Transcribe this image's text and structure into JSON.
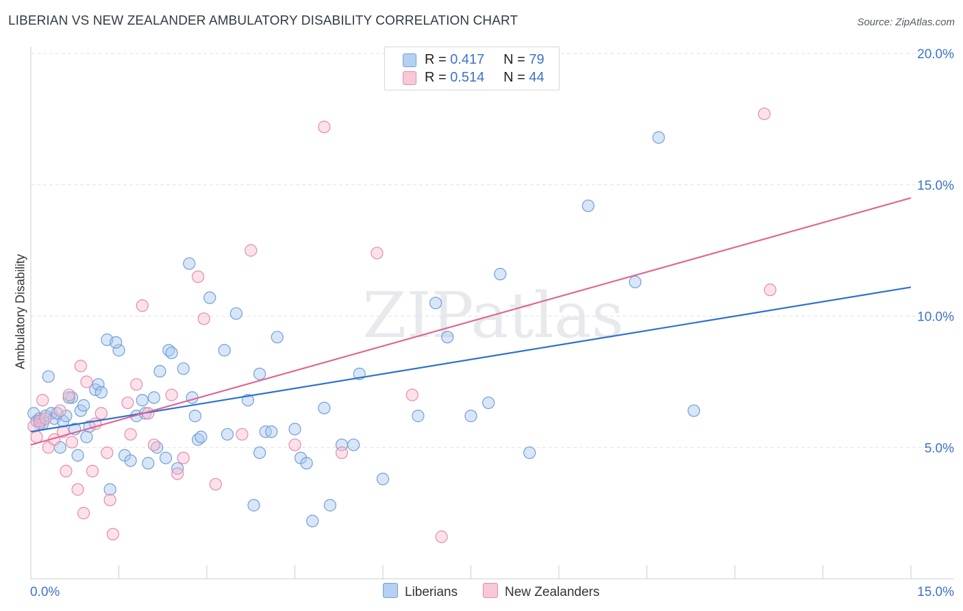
{
  "title": "LIBERIAN VS NEW ZEALANDER AMBULATORY DISABILITY CORRELATION CHART",
  "source": "Source: ZipAtlas.com",
  "watermark": "ZIPatlas",
  "legend_stats": [
    {
      "r_label": "R =",
      "r_value": "0.417",
      "n_label": "N =",
      "n_value": "79"
    },
    {
      "r_label": "R =",
      "r_value": "0.514",
      "n_label": "N =",
      "n_value": "44"
    }
  ],
  "bottom_legend": [
    "Liberians",
    "New Zealanders"
  ],
  "colors": {
    "blue_fill": "#a9c8f0",
    "blue_stroke": "#6f9fd8",
    "blue_line": "#2f6fcf",
    "pink_fill": "#f6bfd0",
    "pink_stroke": "#e889a8",
    "pink_line": "#e06592",
    "tick_label": "#3d72c7",
    "grid": "#dde1e7"
  },
  "chart_data": {
    "type": "scatter",
    "title": "LIBERIAN VS NEW ZEALANDER AMBULATORY DISABILITY CORRELATION CHART",
    "xlabel": "",
    "ylabel": "Ambulatory Disability",
    "xlim": [
      0,
      15
    ],
    "ylim": [
      0,
      20
    ],
    "x_tick_labels": [
      "0.0%",
      "15.0%"
    ],
    "y_ticks": [
      5,
      10,
      15,
      20
    ],
    "y_tick_labels": [
      "5.0%",
      "10.0%",
      "15.0%",
      "20.0%"
    ],
    "grid": true,
    "series": [
      {
        "name": "Liberians",
        "r": 0.417,
        "n": 79,
        "trend": {
          "x": [
            0,
            15
          ],
          "y": [
            5.6,
            11.1
          ]
        },
        "points": [
          [
            0.05,
            6.3
          ],
          [
            0.1,
            6.0
          ],
          [
            0.15,
            6.1
          ],
          [
            0.2,
            5.9
          ],
          [
            0.25,
            6.2
          ],
          [
            0.3,
            7.7
          ],
          [
            0.35,
            6.3
          ],
          [
            0.4,
            6.1
          ],
          [
            0.5,
            5.0
          ],
          [
            0.55,
            6.0
          ],
          [
            0.6,
            6.2
          ],
          [
            0.7,
            6.9
          ],
          [
            0.75,
            5.7
          ],
          [
            0.8,
            4.7
          ],
          [
            0.85,
            6.4
          ],
          [
            0.9,
            6.6
          ],
          [
            0.95,
            5.4
          ],
          [
            1.1,
            7.2
          ],
          [
            1.15,
            7.4
          ],
          [
            1.3,
            9.1
          ],
          [
            1.35,
            3.4
          ],
          [
            1.5,
            8.7
          ],
          [
            1.6,
            4.7
          ],
          [
            1.8,
            6.2
          ],
          [
            1.9,
            6.8
          ],
          [
            2.0,
            4.4
          ],
          [
            2.1,
            6.9
          ],
          [
            2.2,
            7.9
          ],
          [
            2.3,
            4.6
          ],
          [
            2.35,
            8.7
          ],
          [
            2.4,
            8.6
          ],
          [
            2.5,
            4.2
          ],
          [
            2.6,
            8.0
          ],
          [
            2.7,
            12.0
          ],
          [
            2.8,
            6.2
          ],
          [
            2.85,
            5.3
          ],
          [
            3.05,
            10.7
          ],
          [
            3.3,
            8.7
          ],
          [
            3.5,
            10.1
          ],
          [
            3.7,
            6.8
          ],
          [
            3.8,
            2.8
          ],
          [
            3.9,
            4.8
          ],
          [
            4.0,
            5.6
          ],
          [
            4.1,
            5.6
          ],
          [
            4.2,
            9.2
          ],
          [
            4.5,
            5.7
          ],
          [
            4.6,
            4.6
          ],
          [
            4.7,
            4.4
          ],
          [
            4.8,
            2.2
          ],
          [
            5.0,
            6.5
          ],
          [
            5.1,
            2.8
          ],
          [
            5.5,
            5.1
          ],
          [
            5.6,
            7.8
          ],
          [
            6.0,
            3.8
          ],
          [
            6.6,
            6.2
          ],
          [
            6.9,
            10.5
          ],
          [
            7.1,
            9.2
          ],
          [
            7.5,
            6.2
          ],
          [
            7.8,
            6.7
          ],
          [
            8.0,
            11.6
          ],
          [
            8.5,
            4.8
          ],
          [
            9.5,
            14.2
          ],
          [
            10.3,
            11.3
          ],
          [
            10.7,
            16.8
          ],
          [
            11.3,
            6.4
          ],
          [
            2.75,
            6.9
          ],
          [
            1.2,
            7.1
          ],
          [
            1.7,
            4.5
          ],
          [
            2.15,
            5.0
          ],
          [
            3.35,
            5.5
          ],
          [
            5.3,
            5.1
          ],
          [
            0.45,
            6.3
          ],
          [
            0.65,
            6.9
          ],
          [
            1.45,
            9.0
          ],
          [
            0.15,
            5.9
          ],
          [
            1.95,
            6.3
          ],
          [
            3.9,
            7.8
          ],
          [
            2.9,
            5.4
          ],
          [
            1.0,
            5.8
          ]
        ]
      },
      {
        "name": "New Zealanders",
        "r": 0.514,
        "n": 44,
        "trend": {
          "x": [
            0,
            15
          ],
          "y": [
            5.1,
            14.5
          ]
        },
        "points": [
          [
            0.05,
            5.8
          ],
          [
            0.1,
            5.4
          ],
          [
            0.15,
            6.0
          ],
          [
            0.2,
            6.8
          ],
          [
            0.25,
            6.1
          ],
          [
            0.3,
            5.0
          ],
          [
            0.4,
            5.3
          ],
          [
            0.5,
            6.4
          ],
          [
            0.6,
            4.1
          ],
          [
            0.65,
            7.0
          ],
          [
            0.7,
            5.2
          ],
          [
            0.8,
            3.4
          ],
          [
            0.85,
            8.1
          ],
          [
            0.9,
            2.5
          ],
          [
            0.95,
            7.5
          ],
          [
            1.05,
            4.1
          ],
          [
            1.1,
            5.9
          ],
          [
            1.2,
            6.3
          ],
          [
            1.3,
            4.8
          ],
          [
            1.35,
            3.0
          ],
          [
            1.4,
            1.7
          ],
          [
            1.65,
            6.7
          ],
          [
            1.8,
            7.4
          ],
          [
            1.9,
            10.4
          ],
          [
            2.1,
            5.1
          ],
          [
            2.4,
            7.0
          ],
          [
            2.5,
            4.0
          ],
          [
            2.6,
            4.6
          ],
          [
            2.85,
            11.5
          ],
          [
            2.95,
            9.9
          ],
          [
            3.15,
            3.6
          ],
          [
            3.6,
            5.5
          ],
          [
            3.75,
            12.5
          ],
          [
            4.5,
            5.1
          ],
          [
            5.0,
            17.2
          ],
          [
            5.3,
            4.8
          ],
          [
            5.9,
            12.4
          ],
          [
            6.5,
            7.0
          ],
          [
            7.0,
            1.6
          ],
          [
            12.5,
            17.7
          ],
          [
            12.6,
            11.0
          ],
          [
            0.55,
            5.6
          ],
          [
            2.0,
            6.3
          ],
          [
            1.7,
            5.5
          ]
        ]
      }
    ]
  }
}
